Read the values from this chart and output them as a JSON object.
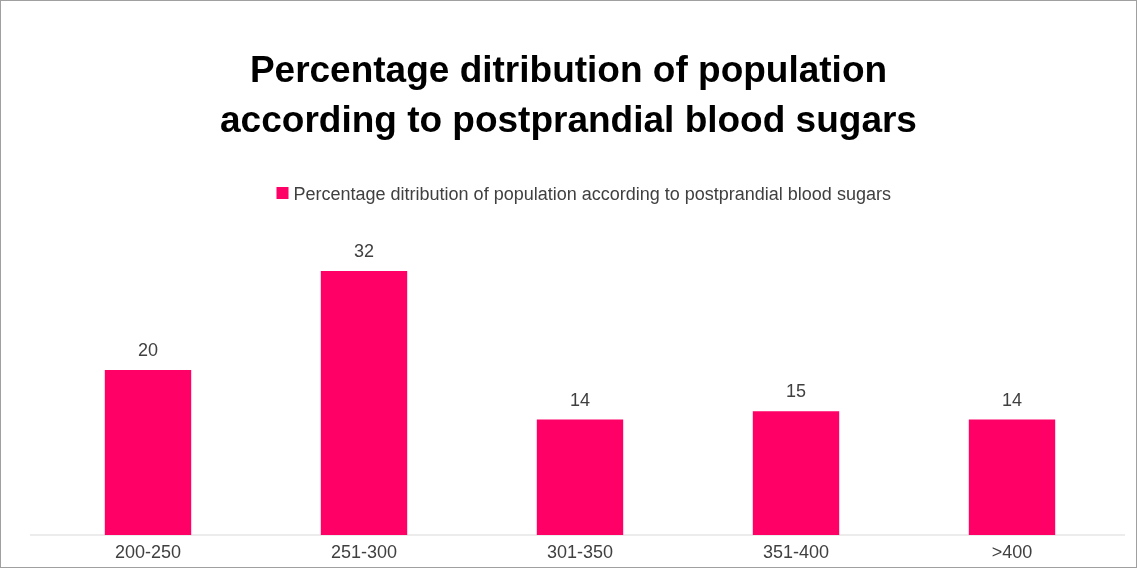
{
  "chart_data": {
    "type": "bar",
    "title": "Percentage ditribution of population\naccording to postprandial blood sugars",
    "categories": [
      "200-250",
      "251-300",
      "301-350",
      "351-400",
      ">400"
    ],
    "series": [
      {
        "name": "Percentage ditribution of population according to postprandial blood sugars",
        "color": "#ff0066",
        "values": [
          20,
          32,
          14,
          15,
          14
        ]
      }
    ],
    "data_labels": true,
    "legend": "top"
  }
}
